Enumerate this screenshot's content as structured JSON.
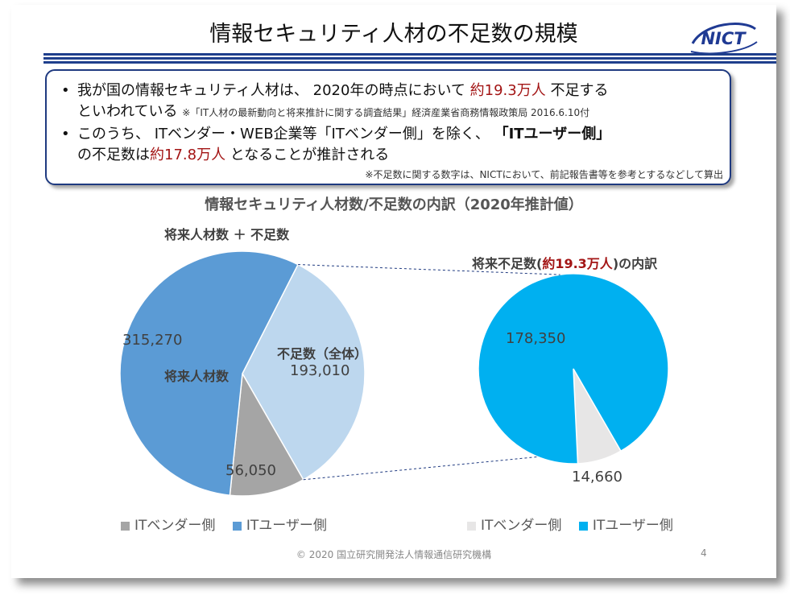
{
  "title": "情報セキュリティ人材の不足数の規模",
  "logo_text": "NICT",
  "bullets": {
    "b1_line1_pre": "我が国の情報セキュリティ人材は、 2020年の時点において ",
    "b1_line1_red": "約19.3万人",
    "b1_line1_post": " 不足する",
    "b1_line2": "といわれている",
    "b1_source": "※「IT人材の最新動向と将来推計に関する調査結果」経済産業省商務情報政策局 2016.6.10付",
    "b2_line1_pre": "このうち、 ITベンダー・WEB企業等「ITベンダー側」を除く、 ",
    "b2_line1_bold": "「ITユーザー側」",
    "b2_line2_pre": "の不足数は",
    "b2_line2_red": "約17.8万人",
    "b2_line2_post": " となることが推計される",
    "note": "※不足数に関する数字は、NICTにおいて、前記報告書等を参考とするなどして算出"
  },
  "chart_heading": "情報セキュリティ人材数/不足数の内訳（2020年推計値）",
  "left_chart_caption": "将来人材数 ＋ 不足数",
  "right_chart_caption_pre": "将来不足数(",
  "right_chart_caption_red": "約19.3万人",
  "right_chart_caption_post": ")の内訳",
  "colors": {
    "it_user_dark": "#5b9bd5",
    "shortage_light": "#bdd7ee",
    "it_vendor_gray": "#a5a5a5",
    "it_user_cyan": "#00b0f0",
    "it_vendor_light": "#e7e6e6",
    "accent_red": "#a31515",
    "navy": "#1f3a80"
  },
  "chart_data": [
    {
      "type": "pie",
      "title": "将来人材数 ＋ 不足数",
      "slices": [
        {
          "name": "将来人材数",
          "value": 315270,
          "label": "315,270",
          "category_label": "将来人材数"
        },
        {
          "name": "不足数（全体）",
          "value": 193010,
          "label": "193,010",
          "category_label": "不足数（全体）"
        },
        {
          "name": "ITベンダー側",
          "value": 56050,
          "label": "56,050"
        }
      ],
      "legend": [
        "ITベンダー側",
        "ITユーザー側"
      ]
    },
    {
      "type": "pie",
      "title": "将来不足数(約19.3万人)の内訳",
      "slices": [
        {
          "name": "ITユーザー側",
          "value": 178350,
          "label": "178,350"
        },
        {
          "name": "ITベンダー側",
          "value": 14660,
          "label": "14,660"
        }
      ],
      "legend": [
        "ITベンダー側",
        "ITユーザー側"
      ]
    }
  ],
  "footer": "© 2020 国立研究開発法人情報通信研究機構",
  "page_number": "4"
}
